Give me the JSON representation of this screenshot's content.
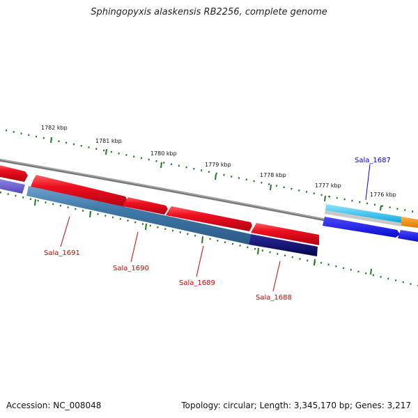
{
  "title": "Sphingopyxis alaskensis RB2256, complete genome",
  "accession": "Accession: NC_008048",
  "summary": "Topology: circular; Length: 3,345,170 bp; Genes: 3,217",
  "ticks": [
    "1782 kbp",
    "1781 kbp",
    "1780 kbp",
    "1779 kbp",
    "1778 kbp",
    "1777 kbp",
    "1776 kbp"
  ],
  "genes": [
    "Sala_1691",
    "Sala_1690",
    "Sala_1689",
    "Sala_1688",
    "Sala_1687"
  ],
  "colors": {
    "backbone": "#808080",
    "red_cds": "#e8101c",
    "blue_cds": "#3f79a8",
    "navy_cds": "#0b0b6e",
    "cyan_cds": "#1ab8e6",
    "royal_cds": "#1414e8",
    "orange_cds": "#f08a10",
    "purple_cds": "#6a5ccc",
    "tick": "#1e7a1e",
    "label_red": "#cc0000",
    "label_blue": "#0000cc"
  }
}
